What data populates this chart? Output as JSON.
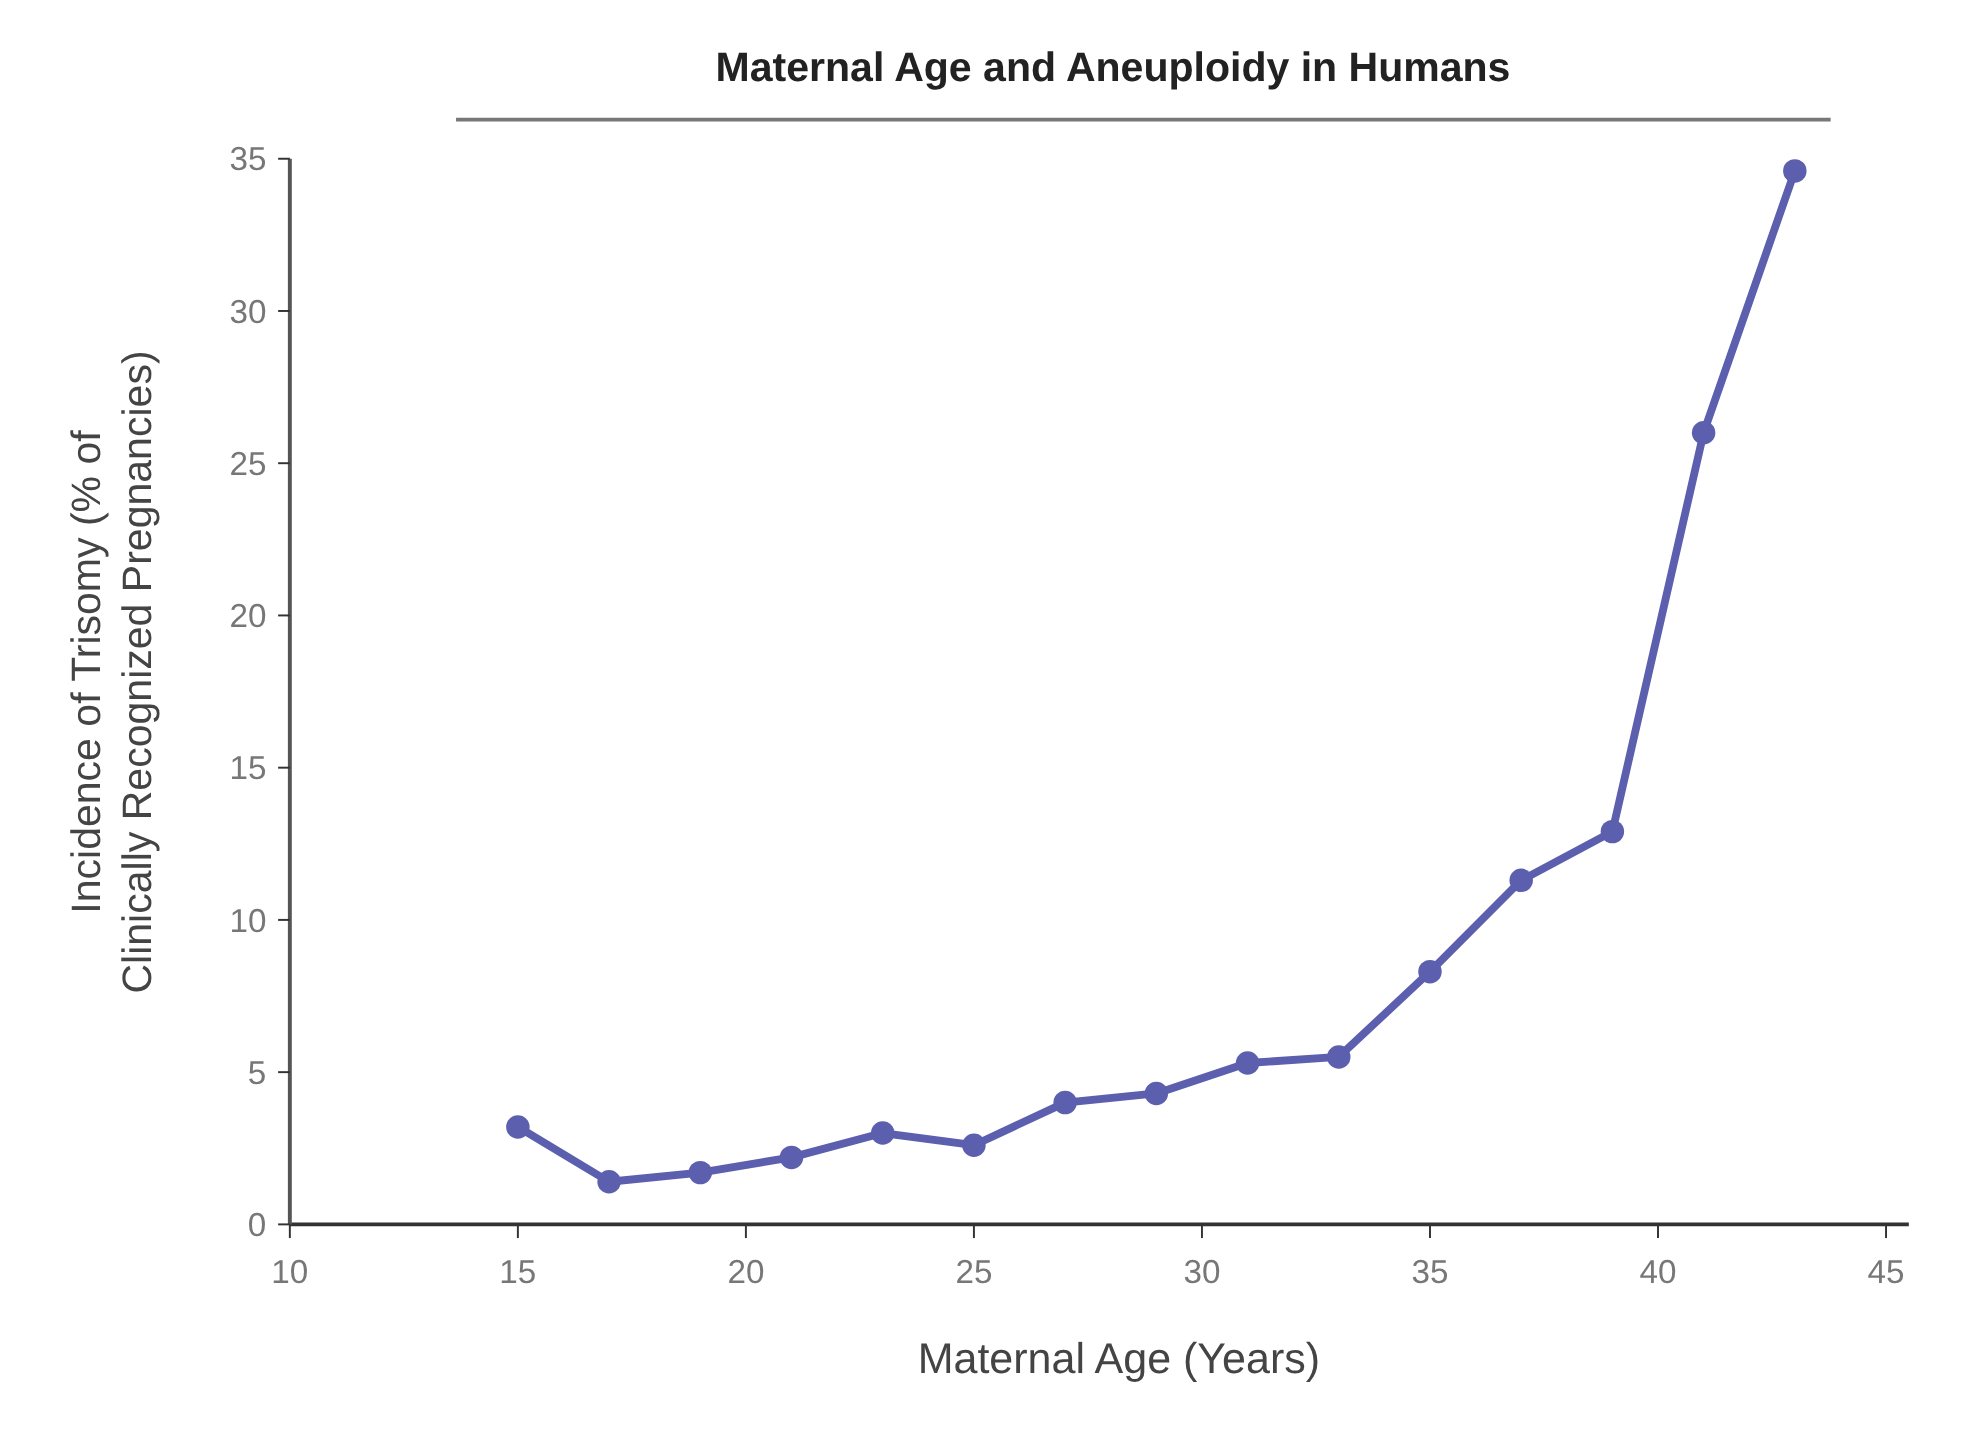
{
  "chart_data": {
    "type": "line",
    "title": "Maternal Age and Aneuploidy in Humans",
    "xlabel": "Maternal Age (Years)",
    "ylabel": "Incidence of Trisomy (% of Clinically Recognized Pregnancies)",
    "x": [
      15,
      17,
      19,
      21,
      23,
      25,
      27,
      29,
      31,
      33,
      35,
      37,
      39,
      41,
      43
    ],
    "series": [
      {
        "color": "#5b5fae",
        "values": [
          3.2,
          1.4,
          1.7,
          2.2,
          3.0,
          2.6,
          4.0,
          4.3,
          5.3,
          5.5,
          8.3,
          11.3,
          12.9,
          26.0,
          34.6
        ]
      }
    ],
    "xlim": [
      10,
      45.5
    ],
    "xticks": [
      10,
      15,
      20,
      25,
      30,
      35,
      40,
      45
    ],
    "ylim": [
      0,
      35
    ],
    "yticks": [
      0,
      5,
      10,
      15,
      20,
      25,
      30,
      35
    ],
    "marker": "circle",
    "line_style": "solid"
  }
}
